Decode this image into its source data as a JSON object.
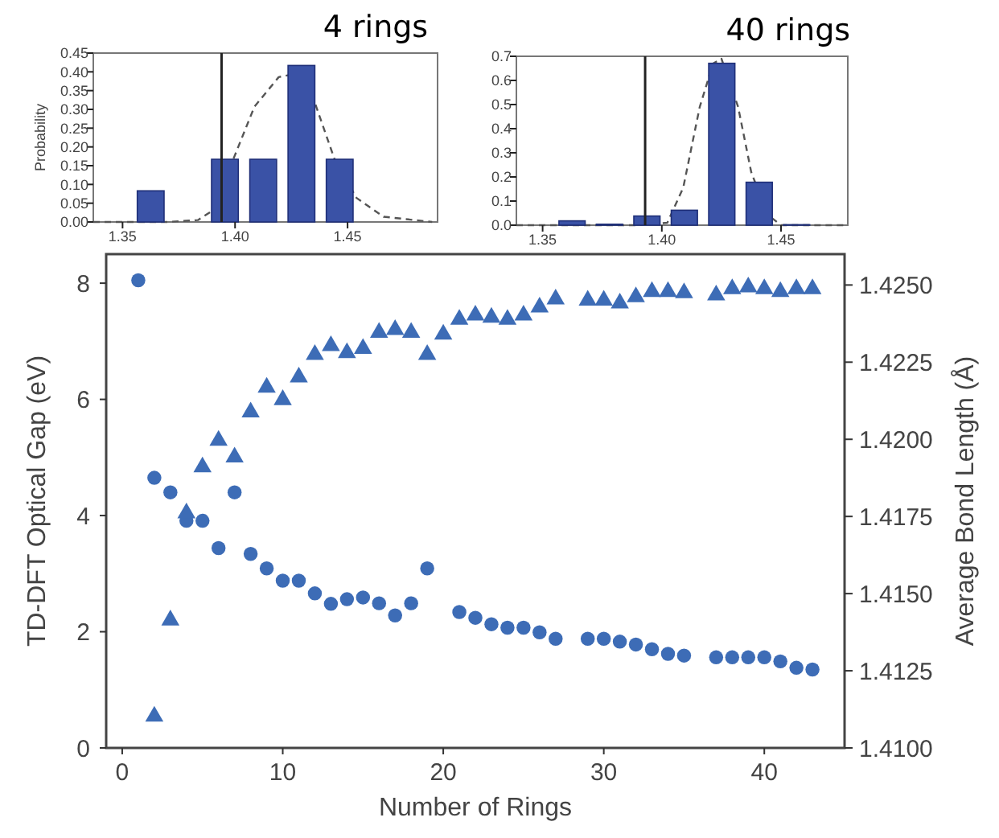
{
  "chart_data": [
    {
      "type": "histogram",
      "title": "4 rings",
      "ylabel": "Probability",
      "bins": [
        1.354,
        1.371,
        1.387,
        1.404,
        1.421,
        1.438,
        1.455
      ],
      "values": [
        0.083,
        0,
        0.167,
        0.167,
        0.417,
        0.167
      ],
      "color": "#3a52a6",
      "xlim": [
        1.337,
        1.49
      ],
      "xticks": [
        1.35,
        {
          "value": 1.4,
          "label": "1.40"
        },
        1.45
      ],
      "ylim": [
        0,
        0.45
      ],
      "yticks": [
        {
          "value": 0,
          "label": "0.00"
        },
        0.05,
        {
          "value": 0.1,
          "label": "0.10"
        },
        0.15,
        {
          "value": 0.2,
          "label": "0.20"
        },
        0.25,
        {
          "value": 0.3,
          "label": "0.30"
        },
        0.35,
        {
          "value": 0.4,
          "label": "0.40"
        },
        0.45
      ],
      "ref_lines": [
        {
          "axis": "x",
          "value": 1.394,
          "color": "#222222"
        }
      ],
      "series": [
        {
          "type": "line",
          "color": "#555555",
          "line_style": "dashed",
          "x": [
            1.337,
            1.37,
            1.3835,
            1.3933,
            1.399,
            1.4086,
            1.4194,
            1.4253,
            1.4348,
            1.4444,
            1.454,
            1.466,
            1.4876
          ],
          "values": [
            0,
            0,
            0.005,
            0.043,
            0.164,
            0.307,
            0.386,
            0.393,
            0.329,
            0.164,
            0.064,
            0.014,
            0
          ]
        }
      ]
    },
    {
      "type": "histogram",
      "title": "40 rings",
      "bins": [
        1.3545,
        1.3702,
        1.3859,
        1.4016,
        1.4173,
        1.433,
        1.4487,
        1.4644
      ],
      "values": [
        0.018,
        0.004,
        0.038,
        0.062,
        0.671,
        0.178,
        0.002
      ],
      "color": "#3a52a6",
      "xlim": [
        1.339,
        1.478
      ],
      "xticks": [
        1.35,
        {
          "value": 1.4,
          "label": "1.40"
        },
        1.45
      ],
      "ylim": [
        0,
        0.7
      ],
      "yticks": [
        {
          "value": 0,
          "label": "0.0"
        },
        0.1,
        0.2,
        0.3,
        0.4,
        0.5,
        0.6,
        0.7
      ],
      "ref_lines": [
        {
          "axis": "x",
          "value": 1.393,
          "color": "#222222"
        }
      ],
      "series": [
        {
          "type": "line",
          "color": "#555555",
          "line_style": "dashed",
          "x": [
            1.339,
            1.39,
            1.4023,
            1.409,
            1.4159,
            1.4215,
            1.425,
            1.432,
            1.4375,
            1.4443,
            1.45,
            1.478
          ],
          "values": [
            0,
            0,
            0.01,
            0.156,
            0.49,
            0.67,
            0.69,
            0.49,
            0.22,
            0.044,
            0,
            0
          ]
        }
      ]
    },
    {
      "type": "scatter",
      "xlabel": "Number of Rings",
      "ylabel": "TD-DFT Optical Gap (eV)",
      "y2label": "Average Bond Length (Å)",
      "xlim": [
        -1,
        45
      ],
      "xticks": [
        0,
        10,
        20,
        30,
        40
      ],
      "ylim": [
        0,
        8.5
      ],
      "yticks": [
        0,
        2,
        4,
        6,
        8
      ],
      "y2lim": [
        1.41,
        1.426
      ],
      "y2ticks": [
        {
          "value": 1.41,
          "label": "1.4100"
        },
        1.4125,
        {
          "value": 1.415,
          "label": "1.4150"
        },
        1.4175,
        {
          "value": 1.42,
          "label": "1.4200"
        },
        1.4225,
        {
          "value": 1.425,
          "label": "1.4250"
        }
      ],
      "series": [
        {
          "color": "#3d6cb6",
          "marker": "circle",
          "x": [
            1,
            2,
            3,
            4,
            5,
            6,
            7,
            8,
            9,
            10,
            11,
            12,
            13,
            14,
            15,
            16,
            17,
            18,
            19,
            21,
            22,
            23,
            24,
            25,
            26,
            27,
            29,
            30,
            31,
            32,
            33,
            34,
            35,
            37,
            38,
            39,
            40,
            41,
            42,
            43
          ],
          "values": [
            8.05,
            4.65,
            4.4,
            3.91,
            3.91,
            3.44,
            4.4,
            3.34,
            3.09,
            2.88,
            2.88,
            2.66,
            2.48,
            2.56,
            2.59,
            2.49,
            2.28,
            2.49,
            3.09,
            2.34,
            2.24,
            2.13,
            2.07,
            2.07,
            1.99,
            1.88,
            1.88,
            1.88,
            1.83,
            1.78,
            1.7,
            1.62,
            1.59,
            1.56,
            1.56,
            1.56,
            1.56,
            1.49,
            1.38,
            1.35
          ]
        },
        {
          "color": "#3d6cb6",
          "marker": "triangle",
          "axis": "y2",
          "x": [
            2,
            3,
            4,
            5,
            6,
            7,
            8,
            9,
            10,
            11,
            12,
            13,
            14,
            15,
            16,
            17,
            18,
            19,
            20,
            21,
            22,
            23,
            24,
            25,
            26,
            27,
            29,
            30,
            31,
            32,
            33,
            34,
            35,
            37,
            38,
            39,
            40,
            41,
            42,
            43
          ],
          "values": [
            1.41102,
            1.41414,
            1.41761,
            1.4191,
            1.41996,
            1.41942,
            1.42088,
            1.42168,
            1.42128,
            1.42201,
            1.42274,
            1.42303,
            1.4228,
            1.42294,
            1.42346,
            1.42355,
            1.42346,
            1.42274,
            1.4234,
            1.42388,
            1.42402,
            1.42395,
            1.42388,
            1.42402,
            1.42428,
            1.42454,
            1.4245,
            1.4245,
            1.42441,
            1.42461,
            1.42478,
            1.42478,
            1.42474,
            1.42467,
            1.42487,
            1.42493,
            1.42487,
            1.42478,
            1.42487,
            1.42487
          ]
        }
      ]
    }
  ]
}
